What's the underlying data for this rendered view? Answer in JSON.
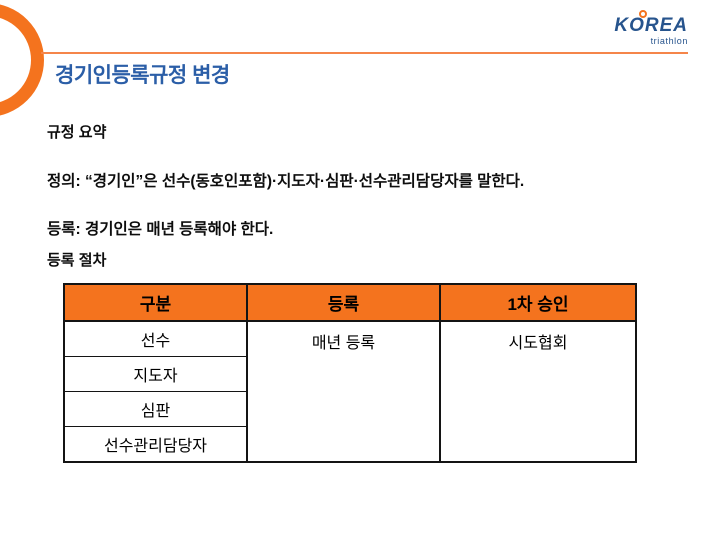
{
  "slide": {
    "title": "경기인등록규정 변경",
    "logo": {
      "brand": "KOREA",
      "subtitle": "triathlon"
    },
    "paragraphs": {
      "summary_heading": "규정 요약",
      "definition": "정의: “경기인”은 선수(동호인포함)·지도자·심판·선수관리담당자를 말한다.",
      "registration_rule": "등록: 경기인은 매년 등록해야 한다.",
      "procedure_heading": "등록 절차"
    },
    "table": {
      "headers": [
        "구분",
        "등록",
        "1차 승인"
      ],
      "row_labels": [
        "선수",
        "지도자",
        "심판",
        "선수관리담당자"
      ],
      "registration_cell": "매년 등록",
      "first_approval_cell": "시도협회"
    },
    "colors": {
      "accent_orange": "#F4731E",
      "line_orange": "#F5854A",
      "title_blue": "#2B5EA7",
      "logo_blue": "#27548D"
    }
  }
}
